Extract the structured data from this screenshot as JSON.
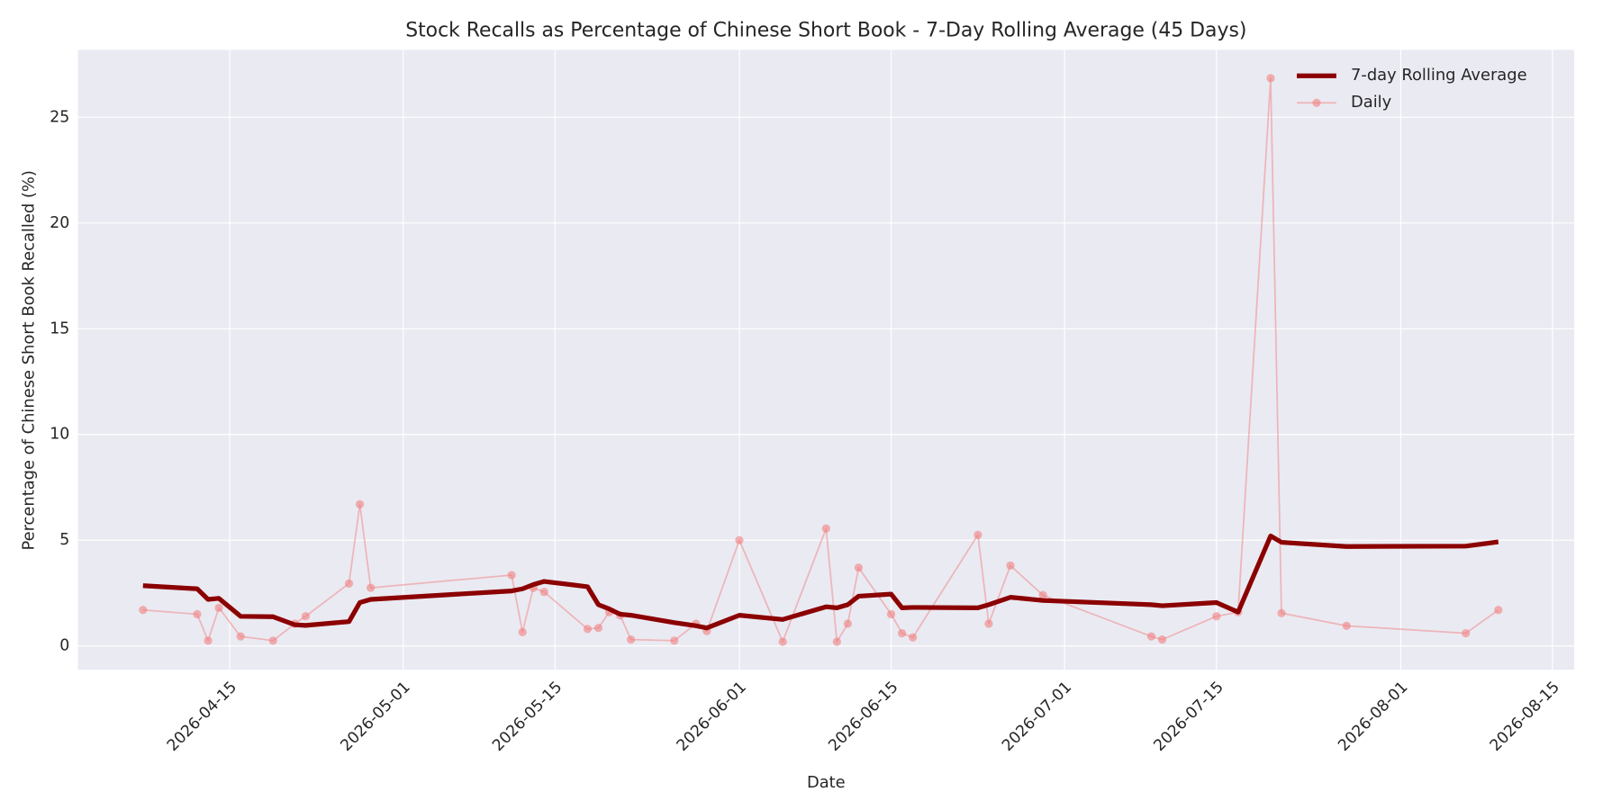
{
  "chart_data": {
    "type": "line",
    "title": "Stock Recalls as Percentage of Chinese Short Book - 7-Day Rolling Average (45 Days)",
    "xlabel": "Date",
    "ylabel": "Percentage of Chinese Short Book Recalled (%)",
    "x": [
      "2026-04-07",
      "2026-04-12",
      "2026-04-13",
      "2026-04-14",
      "2026-04-16",
      "2026-04-19",
      "2026-04-21",
      "2026-04-22",
      "2026-04-26",
      "2026-04-27",
      "2026-04-28",
      "2026-05-11",
      "2026-05-12",
      "2026-05-13",
      "2026-05-14",
      "2026-05-18",
      "2026-05-19",
      "2026-05-20",
      "2026-05-21",
      "2026-05-22",
      "2026-05-26",
      "2026-05-28",
      "2026-05-29",
      "2026-06-01",
      "2026-06-05",
      "2026-06-09",
      "2026-06-10",
      "2026-06-11",
      "2026-06-12",
      "2026-06-15",
      "2026-06-16",
      "2026-06-17",
      "2026-06-23",
      "2026-06-24",
      "2026-06-26",
      "2026-06-29",
      "2026-07-09",
      "2026-07-10",
      "2026-07-15",
      "2026-07-17",
      "2026-07-20",
      "2026-07-21",
      "2026-07-27",
      "2026-08-07",
      "2026-08-10"
    ],
    "series": [
      {
        "name": "7-day Rolling Average",
        "color": "#8b0000",
        "style": "thick-line",
        "values": [
          2.85,
          2.7,
          2.2,
          2.25,
          1.4,
          1.38,
          1.0,
          0.97,
          1.15,
          2.05,
          2.2,
          2.6,
          2.7,
          2.9,
          3.05,
          2.8,
          1.95,
          1.75,
          1.5,
          1.45,
          1.1,
          0.95,
          0.85,
          1.45,
          1.25,
          1.85,
          1.8,
          1.95,
          2.35,
          2.45,
          1.8,
          1.82,
          1.8,
          1.95,
          2.3,
          2.15,
          1.95,
          1.9,
          2.05,
          1.6,
          5.2,
          4.9,
          4.7,
          4.72,
          4.92
        ]
      },
      {
        "name": "Daily",
        "color": "#f08080",
        "style": "thin-line-markers",
        "values": [
          1.7,
          1.5,
          0.25,
          1.8,
          0.45,
          0.25,
          1.05,
          1.4,
          2.95,
          6.7,
          2.75,
          3.35,
          0.65,
          2.75,
          2.55,
          0.8,
          0.85,
          1.6,
          1.45,
          0.3,
          0.25,
          1.05,
          0.7,
          5.0,
          0.2,
          5.55,
          0.2,
          1.05,
          3.7,
          1.5,
          0.6,
          0.4,
          5.25,
          1.05,
          3.8,
          2.4,
          0.45,
          0.3,
          1.4,
          1.6,
          26.85,
          1.55,
          0.95,
          0.6,
          1.7
        ]
      }
    ],
    "xlim": [
      "2026-04-01",
      "2026-08-17"
    ],
    "xticks": [
      "2026-04-15",
      "2026-05-01",
      "2026-05-15",
      "2026-06-01",
      "2026-06-15",
      "2026-07-01",
      "2026-07-15",
      "2026-08-01",
      "2026-08-15"
    ],
    "ylim": [
      -1.13,
      28.19
    ],
    "yticks": [
      0,
      5,
      10,
      15,
      20,
      25
    ],
    "grid": true,
    "legend": "upper right"
  }
}
